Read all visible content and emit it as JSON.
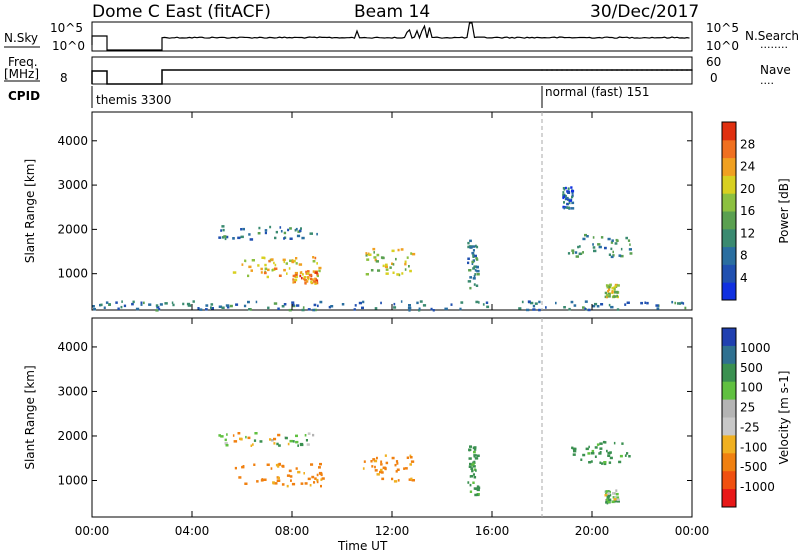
{
  "header": {
    "title": "Dome C East (fitACF)",
    "beam": "Beam 14",
    "date": "30/Dec/2017"
  },
  "nsky_panel": {
    "label": "N.Sky",
    "ticks_left": [
      "10^5",
      "10^0"
    ],
    "ticks_right": [
      "10^5",
      "10^0"
    ],
    "right_label": "N.Search",
    "right_dots": "........"
  },
  "freq_panel": {
    "label_line1": "Freq.",
    "label_line2": "[MHz]",
    "ticks_left": [
      "8"
    ],
    "ticks_right": [
      "60",
      "0"
    ],
    "right_label": "Nave",
    "right_dots": "...."
  },
  "cpid": {
    "label": "CPID",
    "modes": [
      {
        "name": "themis 3300",
        "start_hour": 0.0
      },
      {
        "name": "normal (fast) 151",
        "start_hour": 18.0
      }
    ]
  },
  "colors": {
    "power": [
      "#1030e0",
      "#2050b0",
      "#2a6ea0",
      "#3a8a70",
      "#5aa050",
      "#8cc040",
      "#d8d020",
      "#f0a020",
      "#f07020",
      "#e03010"
    ],
    "velocity": [
      "#e81818",
      "#f05010",
      "#f08010",
      "#f0b020",
      "#c8c8c8",
      "#b4b4b4",
      "#60c040",
      "#3a9050",
      "#2f7090",
      "#2040b0"
    ]
  },
  "chart_data": [
    {
      "type": "heatmap",
      "title": "",
      "xlabel": "Time UT",
      "ylabel": "Slant Range [km]",
      "xlim": [
        0,
        24
      ],
      "ylim": [
        180,
        4650
      ],
      "x_ticks": [
        "00:00",
        "04:00",
        "08:00",
        "12:00",
        "16:00",
        "20:00",
        "00:00"
      ],
      "y_ticks": [
        "1000",
        "2000",
        "3000",
        "4000"
      ],
      "colorbar": {
        "label": "Power [dB]",
        "ticks": [
          "4",
          "8",
          "12",
          "16",
          "20",
          "24",
          "28"
        ],
        "range": [
          0,
          30
        ]
      },
      "regions": [
        {
          "t_start": 5.0,
          "t_end": 9.0,
          "range_start": 1800,
          "range_end": 2100,
          "value": 8
        },
        {
          "t_start": 5.6,
          "t_end": 9.2,
          "range_start": 900,
          "range_end": 1400,
          "value": 20
        },
        {
          "t_start": 8.0,
          "t_end": 9.0,
          "range_start": 800,
          "range_end": 1100,
          "value": 24
        },
        {
          "t_start": 10.8,
          "t_end": 12.8,
          "range_start": 1000,
          "range_end": 1600,
          "value": 18
        },
        {
          "t_start": 15.0,
          "t_end": 15.4,
          "range_start": 700,
          "range_end": 1800,
          "value": 10
        },
        {
          "t_start": 18.8,
          "t_end": 19.2,
          "range_start": 2500,
          "range_end": 3000,
          "value": 6
        },
        {
          "t_start": 19.0,
          "t_end": 21.5,
          "range_start": 1400,
          "range_end": 1900,
          "value": 10
        },
        {
          "t_start": 20.5,
          "t_end": 21.0,
          "range_start": 500,
          "range_end": 800,
          "value": 18
        },
        {
          "t_start": 0.0,
          "t_end": 24.0,
          "range_start": 200,
          "range_end": 400,
          "value": 8
        }
      ]
    },
    {
      "type": "heatmap",
      "title": "",
      "xlabel": "Time UT",
      "ylabel": "Slant Range [km]",
      "xlim": [
        0,
        24
      ],
      "ylim": [
        180,
        4650
      ],
      "x_ticks": [
        "00:00",
        "04:00",
        "08:00",
        "12:00",
        "16:00",
        "20:00",
        "00:00"
      ],
      "y_ticks": [
        "1000",
        "2000",
        "3000",
        "4000"
      ],
      "colorbar": {
        "label": "Velocity [m s-1]",
        "ticks": [
          "1000",
          "500",
          "100",
          "25",
          "-25",
          "-100",
          "-500",
          "-1000"
        ],
        "range": [
          -1000,
          1000
        ]
      },
      "regions": [
        {
          "t_start": 5.0,
          "t_end": 9.0,
          "range_start": 1800,
          "range_end": 2100,
          "value": 0
        },
        {
          "t_start": 5.6,
          "t_end": 9.2,
          "range_start": 900,
          "range_end": 1400,
          "value": -200
        },
        {
          "t_start": 10.8,
          "t_end": 12.8,
          "range_start": 1000,
          "range_end": 1600,
          "value": -200
        },
        {
          "t_start": 15.0,
          "t_end": 15.4,
          "range_start": 700,
          "range_end": 1800,
          "value": 200
        },
        {
          "t_start": 19.0,
          "t_end": 21.5,
          "range_start": 1400,
          "range_end": 1900,
          "value": 200
        },
        {
          "t_start": 20.5,
          "t_end": 21.0,
          "range_start": 500,
          "range_end": 800,
          "value": 100
        }
      ]
    }
  ]
}
